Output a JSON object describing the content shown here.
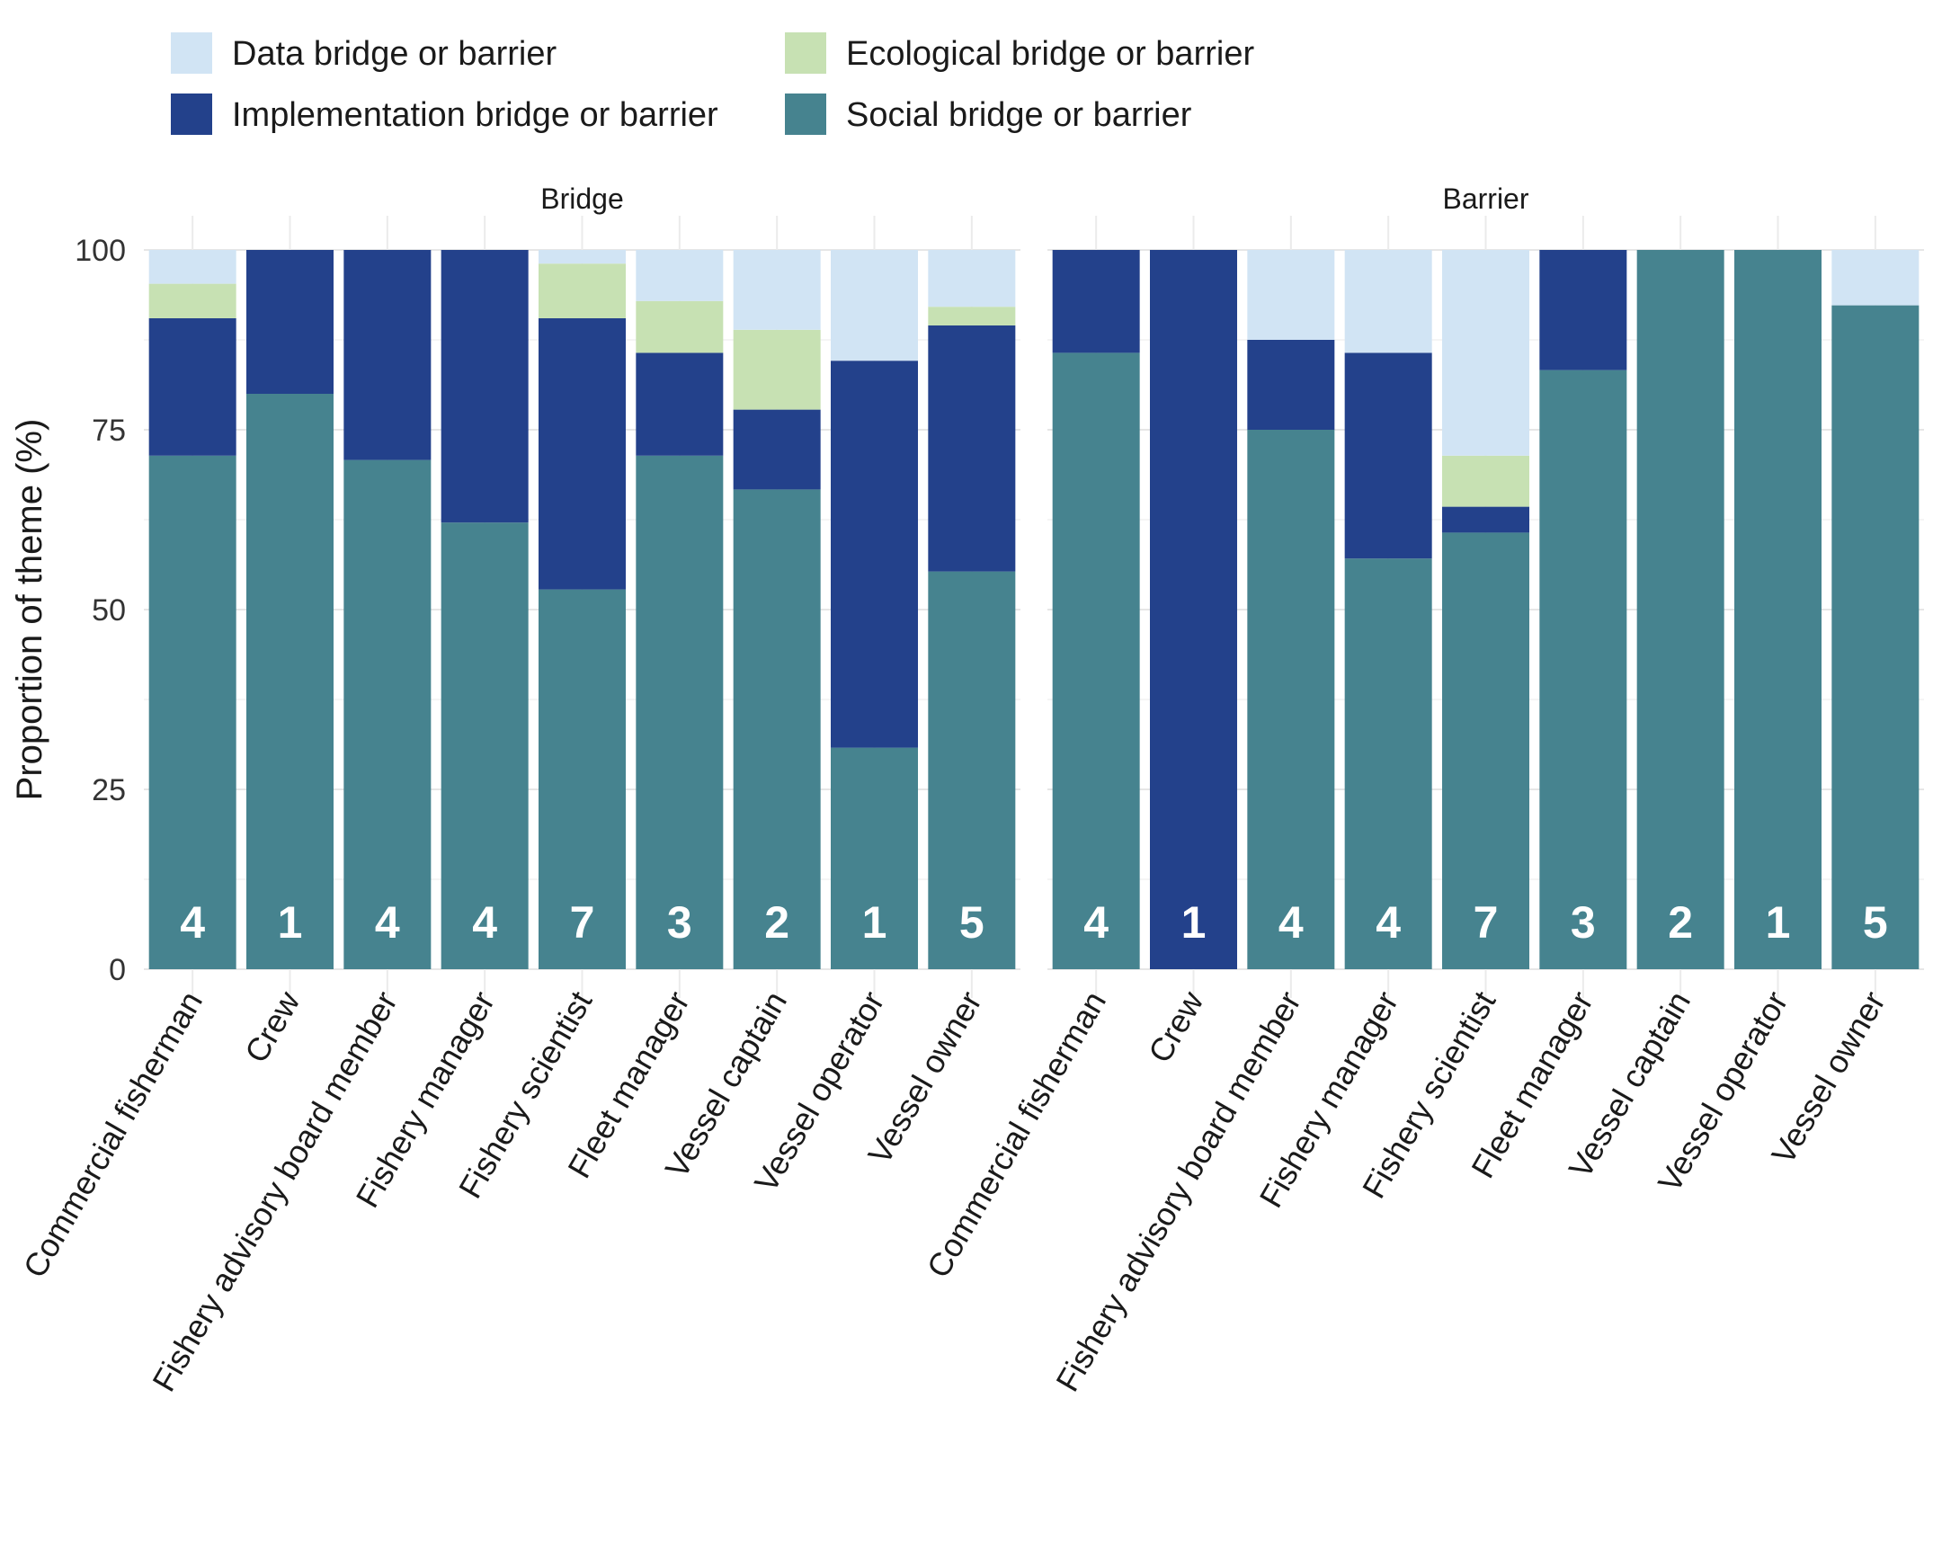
{
  "chart_data": {
    "type": "bar",
    "stacked": true,
    "ylabel": "Proportion of theme (%)",
    "ylim": [
      0,
      100
    ],
    "yticks": [
      0,
      25,
      50,
      75,
      100
    ],
    "grid": true,
    "legend": {
      "placement": "top-left",
      "entries": [
        {
          "key": "data",
          "label": "Data bridge or barrier",
          "color": "#d1e4f4"
        },
        {
          "key": "ecological",
          "label": "Ecological bridge or barrier",
          "color": "#c7e1b3"
        },
        {
          "key": "implementation",
          "label": "Implementation bridge or barrier",
          "color": "#23418b"
        },
        {
          "key": "social",
          "label": "Social bridge or barrier",
          "color": "#46838f"
        }
      ]
    },
    "stack_order": [
      "social",
      "implementation",
      "ecological",
      "data"
    ],
    "categories": [
      "Commercial fisherman",
      "Crew",
      "Fishery advisory board member",
      "Fishery manager",
      "Fishery scientist",
      "Fleet manager",
      "Vessel captain",
      "Vessel operator",
      "Vessel owner"
    ],
    "panels": [
      {
        "title": "Bridge",
        "counts": [
          "4",
          "1",
          "4",
          "4",
          "7",
          "3",
          "2",
          "1",
          "5"
        ],
        "series": [
          {
            "key": "social",
            "values": [
              71.4,
              80.0,
              70.8,
              62.1,
              52.8,
              71.4,
              66.7,
              30.8,
              55.3
            ]
          },
          {
            "key": "implementation",
            "values": [
              19.1,
              20.0,
              29.2,
              37.9,
              37.7,
              14.3,
              11.1,
              53.8,
              34.2
            ]
          },
          {
            "key": "ecological",
            "values": [
              4.8,
              0,
              0,
              0,
              7.6,
              7.2,
              11.1,
              0,
              2.6
            ]
          },
          {
            "key": "data",
            "values": [
              4.7,
              0,
              0,
              0,
              1.9,
              7.1,
              11.1,
              15.4,
              7.9
            ]
          }
        ]
      },
      {
        "title": "Barrier",
        "counts": [
          "4",
          "1",
          "4",
          "4",
          "7",
          "3",
          "2",
          "1",
          "5"
        ],
        "series": [
          {
            "key": "social",
            "values": [
              85.7,
              0,
              75.0,
              57.1,
              60.7,
              83.3,
              100,
              100,
              92.3
            ]
          },
          {
            "key": "implementation",
            "values": [
              14.3,
              100,
              12.5,
              28.6,
              3.6,
              16.7,
              0,
              0,
              0
            ]
          },
          {
            "key": "ecological",
            "values": [
              0,
              0,
              0,
              0,
              7.1,
              0,
              0,
              0,
              0
            ]
          },
          {
            "key": "data",
            "values": [
              0,
              0,
              12.5,
              14.3,
              28.6,
              0,
              0,
              0,
              7.7
            ]
          }
        ]
      }
    ]
  }
}
